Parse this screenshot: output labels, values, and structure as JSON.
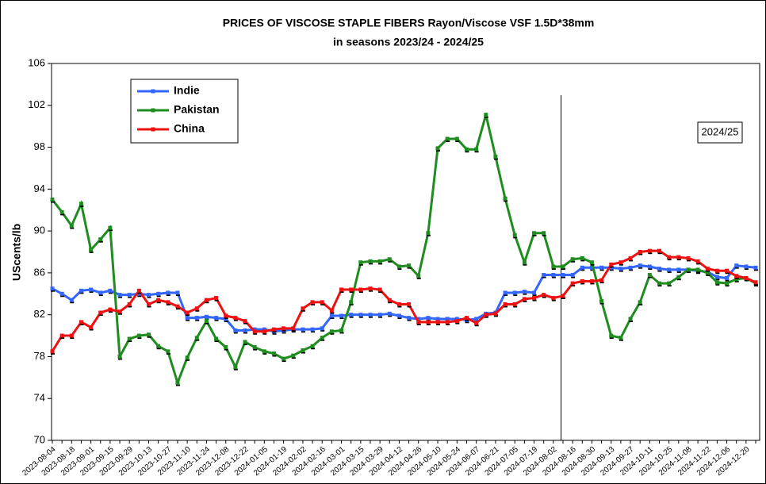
{
  "chart_data": {
    "type": "line",
    "title": "PRICES OF VISCOSE STAPLE FIBERS  Rayon/Viscose VSF 1.5D*38mm",
    "subtitle": "in seasons 2023/24 - 2024/25",
    "y_label": "UScents/lb",
    "annotation": "2024/25",
    "legend": "upper left",
    "ylim": [
      70,
      106
    ],
    "yticks": [
      70,
      74,
      78,
      82,
      86,
      90,
      94,
      98,
      102,
      106
    ],
    "categories": [
      "2023-08-04",
      null,
      "2023-08-18",
      null,
      "2023-09-01",
      null,
      "2023-09-15",
      null,
      "2023-09-29",
      null,
      "2023-10-13",
      null,
      "2023-10-27",
      null,
      "2023-11-10",
      null,
      "2023-11-24",
      null,
      "2023-12-08",
      null,
      "2023-12-22",
      null,
      "2024-01-05",
      null,
      "2024-01-19",
      null,
      "2024-02-02",
      null,
      "2024-02-16",
      null,
      "2024-03-01",
      null,
      "2024-03-15",
      null,
      "2024-03-29",
      null,
      "2024-04-12",
      null,
      "2024-04-26",
      null,
      "2024-05-10",
      null,
      "2024-05-24",
      null,
      "2024-06-07",
      null,
      "2024-06-21",
      null,
      "2024-07-05",
      null,
      "2024-07-19",
      null,
      "2024-08-02",
      null,
      "2024-08-16",
      null,
      "2024-08-30",
      null,
      "2024-09-13",
      null,
      "2024-09-27",
      null,
      "2024-10-11",
      null,
      "2024-10-25",
      null,
      "2024-11-08",
      null,
      "2024-11-22",
      null,
      "2024-12-06",
      null,
      "2024-12-20",
      null
    ],
    "series": [
      {
        "name": "Indie",
        "color": "#3366ff",
        "values": [
          84.5,
          84.0,
          83.4,
          84.3,
          84.4,
          84.1,
          84.3,
          83.9,
          83.9,
          84.0,
          83.9,
          84.0,
          84.1,
          84.1,
          81.7,
          81.7,
          81.8,
          81.7,
          81.6,
          80.5,
          80.5,
          80.6,
          80.6,
          80.4,
          80.5,
          80.6,
          80.6,
          80.6,
          80.7,
          81.9,
          81.9,
          82.0,
          82.0,
          82.0,
          82.0,
          82.1,
          81.9,
          81.7,
          81.6,
          81.7,
          81.6,
          81.6,
          81.6,
          81.5,
          81.6,
          82.1,
          82.2,
          84.1,
          84.1,
          84.2,
          84.1,
          85.8,
          85.8,
          85.8,
          85.8,
          86.5,
          86.5,
          86.5,
          86.5,
          86.4,
          86.5,
          86.7,
          86.6,
          86.4,
          86.3,
          86.3,
          86.3,
          86.2,
          86.1,
          85.6,
          85.5,
          86.7,
          86.6,
          86.5
        ]
      },
      {
        "name": "Pakistan",
        "color": "#1f8c1f",
        "values": [
          93.0,
          91.8,
          90.5,
          92.6,
          88.2,
          89.2,
          90.3,
          78.0,
          79.7,
          80.0,
          80.1,
          79.0,
          78.5,
          75.5,
          77.9,
          79.8,
          81.4,
          79.7,
          78.9,
          77.0,
          79.4,
          78.9,
          78.5,
          78.3,
          77.8,
          78.1,
          78.6,
          79.0,
          79.8,
          80.4,
          80.5,
          83.2,
          87.0,
          87.1,
          87.1,
          87.3,
          86.6,
          86.7,
          85.7,
          89.8,
          97.9,
          98.8,
          98.8,
          97.8,
          97.8,
          101.1,
          97.1,
          93.1,
          89.6,
          87.0,
          89.8,
          89.8,
          86.6,
          86.6,
          87.3,
          87.4,
          87.0,
          83.3,
          80.0,
          79.8,
          81.6,
          83.2,
          85.8,
          85.0,
          85.0,
          85.6,
          86.3,
          86.3,
          86.0,
          85.1,
          85.0,
          85.4,
          85.5,
          85.0
        ]
      },
      {
        "name": "China",
        "color": "#ee1111",
        "values": [
          78.5,
          80.0,
          80.0,
          81.3,
          80.8,
          82.2,
          82.5,
          82.3,
          83.0,
          84.3,
          83.0,
          83.4,
          83.2,
          82.8,
          82.2,
          82.6,
          83.4,
          83.6,
          81.9,
          81.7,
          81.4,
          80.4,
          80.4,
          80.6,
          80.7,
          80.7,
          82.6,
          83.2,
          83.2,
          82.4,
          84.4,
          84.4,
          84.4,
          84.5,
          84.4,
          83.4,
          83.0,
          83.0,
          81.3,
          81.3,
          81.3,
          81.3,
          81.4,
          81.7,
          81.2,
          82.0,
          82.1,
          83.0,
          83.0,
          83.5,
          83.6,
          83.9,
          83.6,
          83.8,
          85.0,
          85.2,
          85.2,
          85.3,
          86.8,
          87.0,
          87.4,
          88.0,
          88.1,
          88.1,
          87.5,
          87.5,
          87.4,
          87.1,
          86.4,
          86.2,
          86.2,
          85.7,
          85.5,
          85.1
        ]
      }
    ]
  }
}
